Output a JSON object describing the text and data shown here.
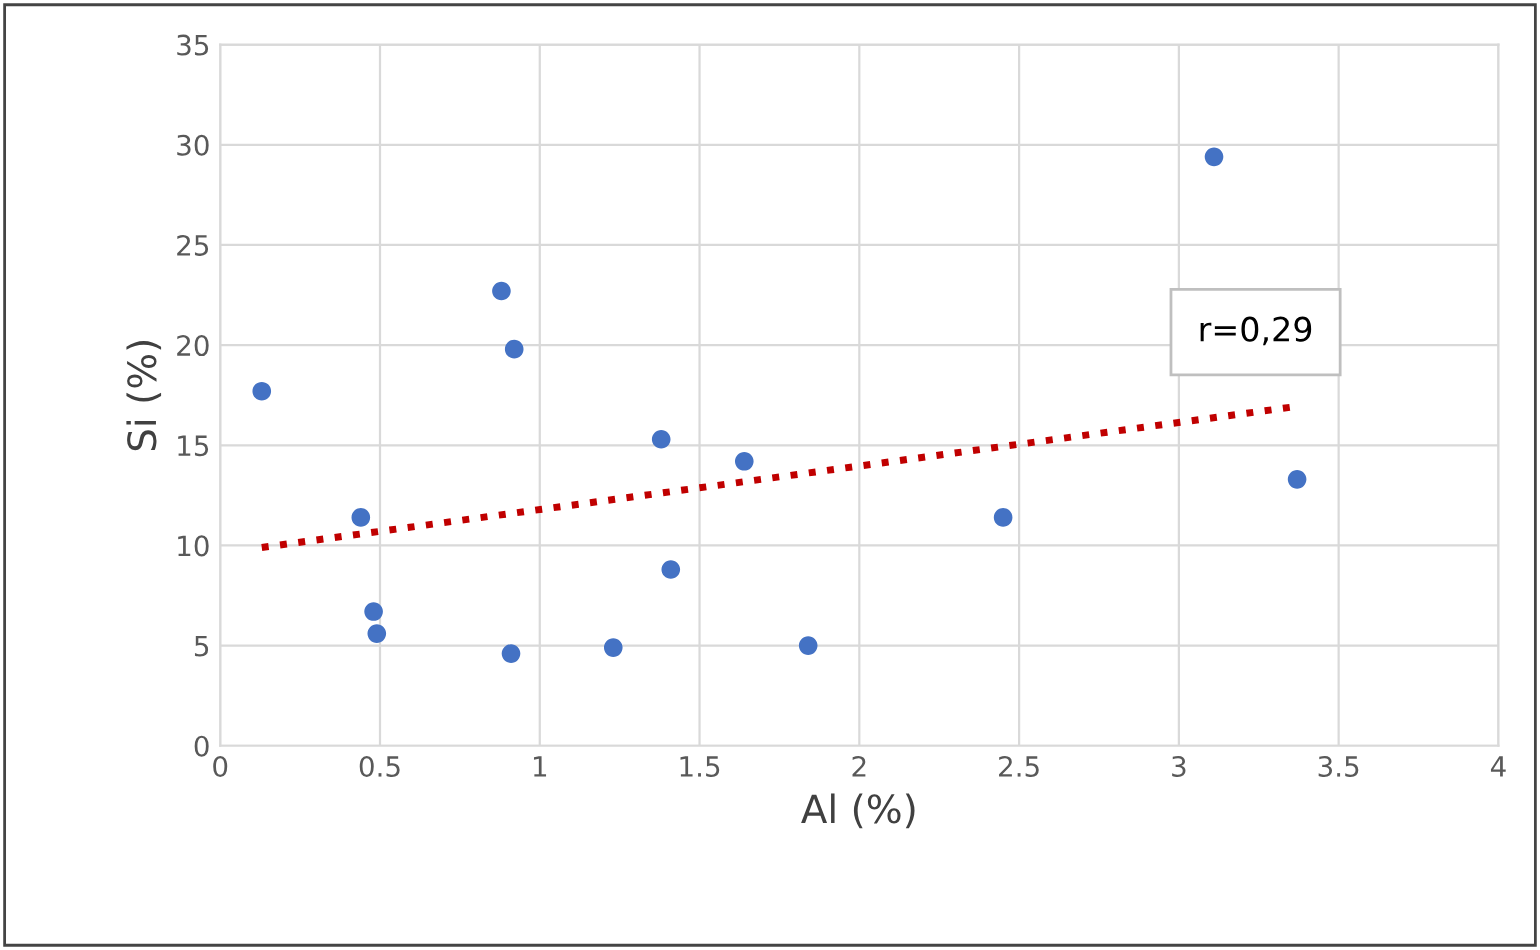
{
  "chart_data": {
    "type": "scatter",
    "xlabel": "Al (%)",
    "ylabel": "Si (%)",
    "xlim": [
      0,
      4
    ],
    "ylim": [
      0,
      35
    ],
    "xticks": [
      0,
      0.5,
      1,
      1.5,
      2,
      2.5,
      3,
      3.5,
      4
    ],
    "yticks": [
      0,
      5,
      10,
      15,
      20,
      25,
      30,
      35
    ],
    "grid": true,
    "legend": false,
    "series": [
      {
        "color": "#4472c4",
        "marker": "circle",
        "x": [
          0.13,
          0.44,
          0.48,
          0.49,
          0.88,
          0.92,
          0.91,
          1.23,
          1.38,
          1.41,
          1.64,
          1.84,
          2.45,
          3.11,
          3.37
        ],
        "values": [
          17.7,
          11.4,
          6.7,
          5.6,
          22.7,
          19.8,
          4.6,
          4.9,
          15.3,
          8.8,
          14.2,
          5.0,
          11.4,
          29.4,
          13.3
        ]
      },
      {
        "type": "line",
        "color": "#c00000",
        "marker": "none",
        "line_style": "dotted",
        "x": [
          0.13,
          3.35
        ],
        "values": [
          9.9,
          16.9
        ]
      }
    ],
    "annotations": [
      "r=0,29"
    ]
  }
}
